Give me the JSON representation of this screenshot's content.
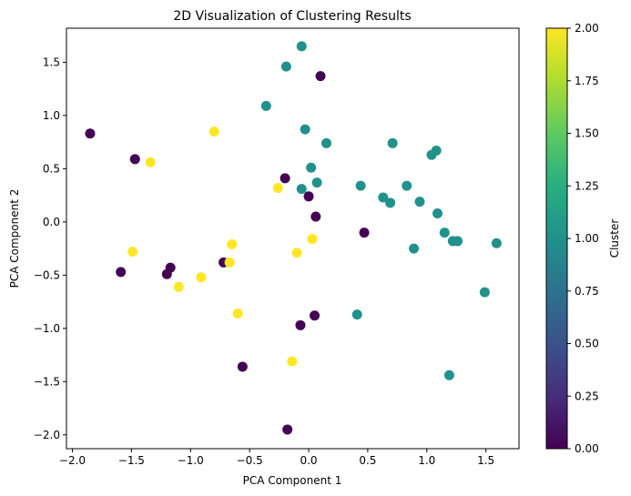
{
  "chart_data": {
    "type": "scatter",
    "title": "2D Visualization of Clustering Results",
    "xlabel": "PCA Component 1",
    "ylabel": "PCA Component 2",
    "xlim": [
      -2.05,
      1.78
    ],
    "ylim": [
      -2.13,
      1.82
    ],
    "xticks": [
      -2.0,
      -1.5,
      -1.0,
      -0.5,
      0.0,
      0.5,
      1.0,
      1.5
    ],
    "xtick_labels": [
      "−2.0",
      "−1.5",
      "−1.0",
      "−0.5",
      "0.0",
      "0.5",
      "1.0",
      "1.5"
    ],
    "yticks": [
      -2.0,
      -1.5,
      -1.0,
      -0.5,
      0.0,
      0.5,
      1.0,
      1.5
    ],
    "ytick_labels": [
      "−2.0",
      "−1.5",
      "−1.0",
      "−0.5",
      "0.0",
      "0.5",
      "1.0",
      "1.5"
    ],
    "grid": false,
    "colormap": "viridis",
    "colorbar": {
      "label": "Cluster",
      "range": [
        0,
        2
      ],
      "ticks": [
        0,
        0.25,
        0.5,
        0.75,
        1.0,
        1.25,
        1.5,
        1.75,
        2.0
      ],
      "tick_labels": [
        "0.00",
        "0.25",
        "0.50",
        "0.75",
        "1.00",
        "1.25",
        "1.50",
        "1.75",
        "2.00"
      ]
    },
    "cluster_colors": [
      "#440154",
      "#21918c",
      "#fde725"
    ],
    "points": [
      {
        "x": -1.85,
        "y": 0.83,
        "cluster": 0
      },
      {
        "x": -1.47,
        "y": 0.59,
        "cluster": 0
      },
      {
        "x": -1.59,
        "y": -0.47,
        "cluster": 0
      },
      {
        "x": -1.2,
        "y": -0.49,
        "cluster": 0
      },
      {
        "x": -1.17,
        "y": -0.43,
        "cluster": 0
      },
      {
        "x": -0.72,
        "y": -0.38,
        "cluster": 0
      },
      {
        "x": -0.56,
        "y": -1.36,
        "cluster": 0
      },
      {
        "x": -0.2,
        "y": 0.41,
        "cluster": 0
      },
      {
        "x": 0.0,
        "y": 0.24,
        "cluster": 0
      },
      {
        "x": 0.06,
        "y": 0.05,
        "cluster": 0
      },
      {
        "x": 0.1,
        "y": 1.37,
        "cluster": 0
      },
      {
        "x": 0.47,
        "y": -0.1,
        "cluster": 0
      },
      {
        "x": -0.07,
        "y": -0.97,
        "cluster": 0
      },
      {
        "x": 0.05,
        "y": -0.88,
        "cluster": 0
      },
      {
        "x": -0.18,
        "y": -1.95,
        "cluster": 0
      },
      {
        "x": -0.06,
        "y": 1.65,
        "cluster": 1
      },
      {
        "x": -0.19,
        "y": 1.46,
        "cluster": 1
      },
      {
        "x": -0.36,
        "y": 1.09,
        "cluster": 1
      },
      {
        "x": -0.03,
        "y": 0.87,
        "cluster": 1
      },
      {
        "x": 0.15,
        "y": 0.74,
        "cluster": 1
      },
      {
        "x": 0.02,
        "y": 0.51,
        "cluster": 1
      },
      {
        "x": 0.07,
        "y": 0.37,
        "cluster": 1
      },
      {
        "x": -0.06,
        "y": 0.31,
        "cluster": 1
      },
      {
        "x": 0.44,
        "y": 0.34,
        "cluster": 1
      },
      {
        "x": 0.71,
        "y": 0.74,
        "cluster": 1
      },
      {
        "x": 0.63,
        "y": 0.23,
        "cluster": 1
      },
      {
        "x": 0.69,
        "y": 0.18,
        "cluster": 1
      },
      {
        "x": 0.83,
        "y": 0.34,
        "cluster": 1
      },
      {
        "x": 0.94,
        "y": 0.19,
        "cluster": 1
      },
      {
        "x": 1.04,
        "y": 0.63,
        "cluster": 1
      },
      {
        "x": 1.08,
        "y": 0.67,
        "cluster": 1
      },
      {
        "x": 1.09,
        "y": 0.08,
        "cluster": 1
      },
      {
        "x": 1.15,
        "y": -0.1,
        "cluster": 1
      },
      {
        "x": 1.22,
        "y": -0.18,
        "cluster": 1
      },
      {
        "x": 1.26,
        "y": -0.18,
        "cluster": 1
      },
      {
        "x": 0.89,
        "y": -0.25,
        "cluster": 1
      },
      {
        "x": 1.59,
        "y": -0.2,
        "cluster": 1
      },
      {
        "x": 1.49,
        "y": -0.66,
        "cluster": 1
      },
      {
        "x": 0.41,
        "y": -0.87,
        "cluster": 1
      },
      {
        "x": 1.19,
        "y": -1.44,
        "cluster": 1
      },
      {
        "x": -1.34,
        "y": 0.56,
        "cluster": 2
      },
      {
        "x": -0.8,
        "y": 0.85,
        "cluster": 2
      },
      {
        "x": -0.26,
        "y": 0.32,
        "cluster": 2
      },
      {
        "x": -1.49,
        "y": -0.28,
        "cluster": 2
      },
      {
        "x": -1.1,
        "y": -0.61,
        "cluster": 2
      },
      {
        "x": -0.91,
        "y": -0.52,
        "cluster": 2
      },
      {
        "x": -0.65,
        "y": -0.21,
        "cluster": 2
      },
      {
        "x": -0.67,
        "y": -0.38,
        "cluster": 2
      },
      {
        "x": -0.6,
        "y": -0.86,
        "cluster": 2
      },
      {
        "x": -0.1,
        "y": -0.29,
        "cluster": 2
      },
      {
        "x": 0.03,
        "y": -0.16,
        "cluster": 2
      },
      {
        "x": -0.14,
        "y": -1.31,
        "cluster": 2
      }
    ]
  }
}
